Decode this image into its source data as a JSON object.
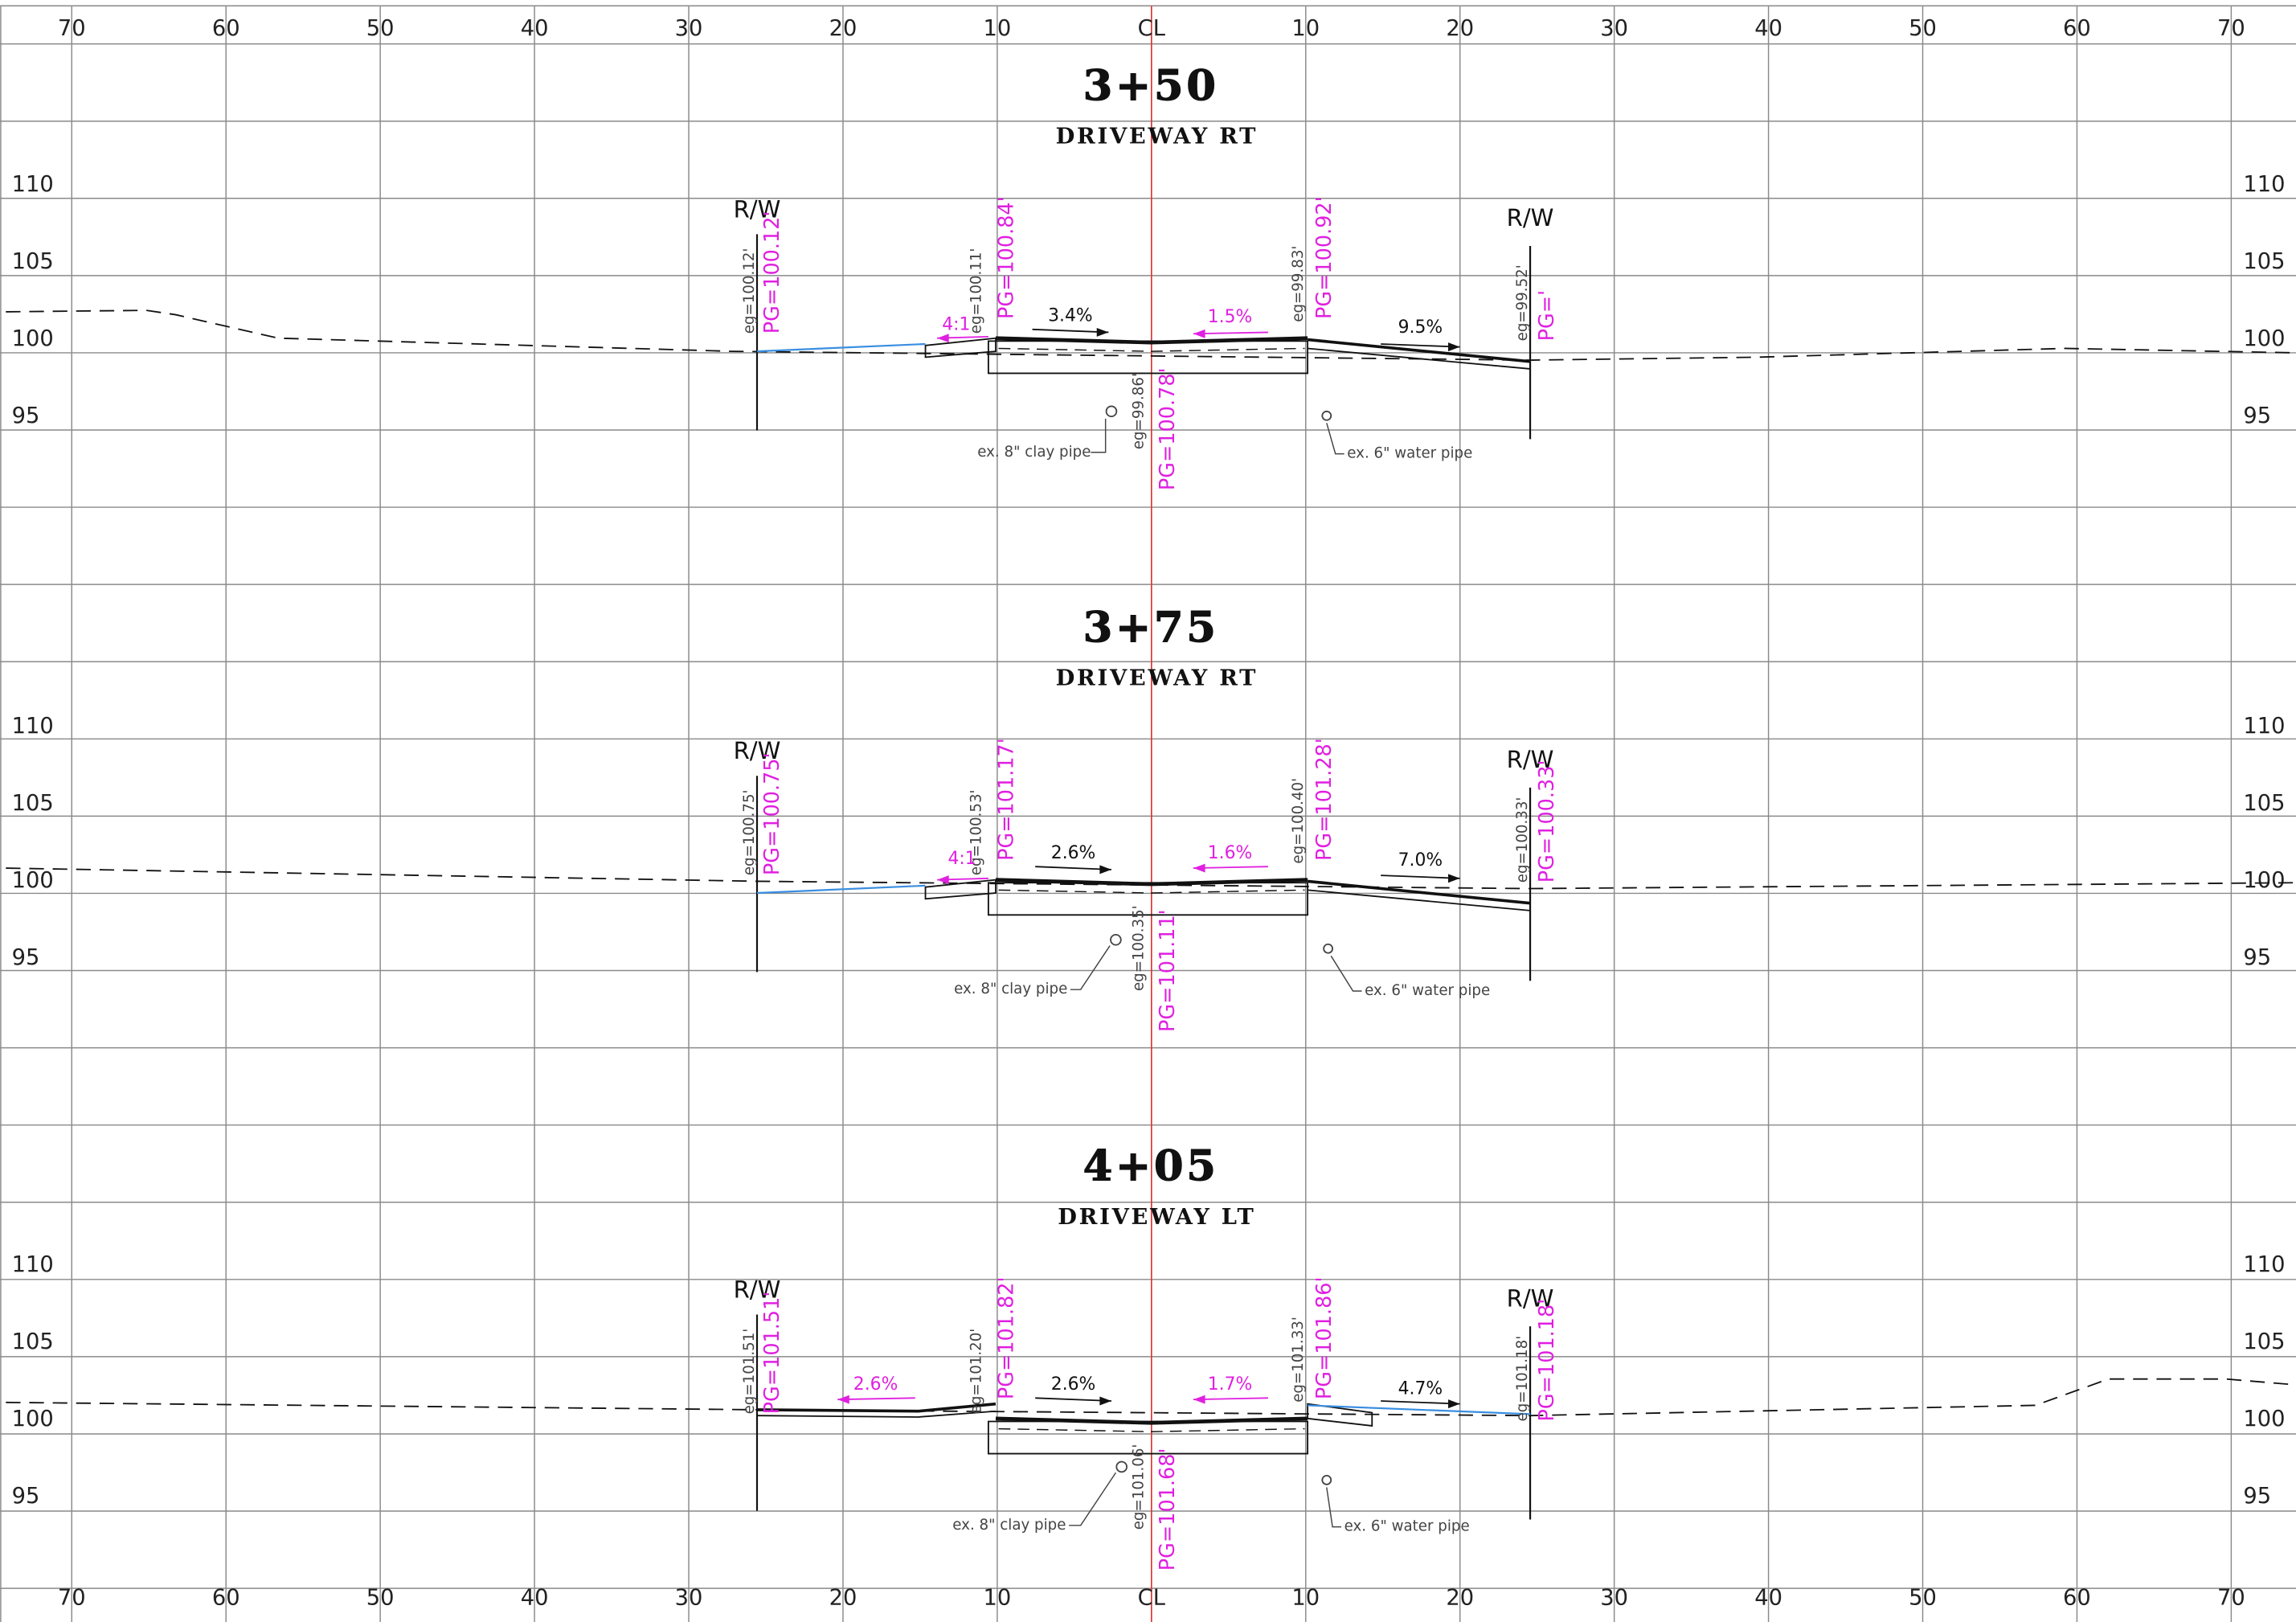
{
  "axis_top": [
    "70",
    "60",
    "50",
    "40",
    "30",
    "20",
    "10",
    "CL",
    "10",
    "20",
    "30",
    "40",
    "50",
    "60",
    "70"
  ],
  "axis_bottom": [
    "70",
    "60",
    "50",
    "40",
    "30",
    "20",
    "10",
    "CL",
    "10",
    "20",
    "30",
    "40",
    "50",
    "60",
    "70"
  ],
  "sections": [
    {
      "station": "3+50",
      "title": "DRIVEWAY RT",
      "elevations_left": [
        110,
        105,
        100,
        95
      ],
      "elevations_right": [
        110,
        105,
        100,
        95
      ],
      "rw_left": "R/W",
      "rw_right": "R/W",
      "eg": [
        "eg=100.12'",
        "eg=100.11'",
        "eg=99.83'",
        "eg=99.52'",
        "eg=99.86'"
      ],
      "pg": [
        "PG=100.12'",
        "PG=100.84'",
        "PG=100.92'",
        "PG='",
        "PG=100.78'"
      ],
      "slopes": [
        {
          "text": "4:1",
          "color": "#e020e0"
        },
        {
          "text": "3.4%",
          "color": "#111111"
        },
        {
          "text": "1.5%",
          "color": "#e020e0"
        },
        {
          "text": "9.5%",
          "color": "#111111"
        }
      ],
      "pipes": [
        "ex. 8\" clay pipe",
        "ex. 6\" water pipe"
      ]
    },
    {
      "station": "3+75",
      "title": "DRIVEWAY RT",
      "elevations_left": [
        110,
        105,
        100,
        95
      ],
      "elevations_right": [
        110,
        105,
        100,
        95
      ],
      "rw_left": "R/W",
      "rw_right": "R/W",
      "eg": [
        "eg=100.75'",
        "eg=100.53'",
        "eg=100.40'",
        "eg=100.33'",
        "eg=100.35'"
      ],
      "pg": [
        "PG=100.75'",
        "PG=101.17'",
        "PG=101.28'",
        "PG=100.33'",
        "PG=101.11'"
      ],
      "slopes": [
        {
          "text": "4:1",
          "color": "#e020e0"
        },
        {
          "text": "2.6%",
          "color": "#111111"
        },
        {
          "text": "1.6%",
          "color": "#e020e0"
        },
        {
          "text": "7.0%",
          "color": "#111111"
        }
      ],
      "pipes": [
        "ex. 8\" clay pipe",
        "ex. 6\" water pipe"
      ]
    },
    {
      "station": "4+05",
      "title": "DRIVEWAY LT",
      "elevations_left": [
        110,
        105,
        100,
        95
      ],
      "elevations_right": [
        110,
        105,
        100,
        95
      ],
      "rw_left": "R/W",
      "rw_right": "R/W",
      "eg": [
        "eg=101.51'",
        "eg=101.20'",
        "eg=101.33'",
        "eg=101.18'",
        "eg=101.06'"
      ],
      "pg": [
        "PG=101.51'",
        "PG=101.82'",
        "PG=101.86'",
        "PG=101.18'",
        "PG=101.68'"
      ],
      "slopes": [
        {
          "text": "2.6%",
          "color": "#e020e0"
        },
        {
          "text": "2.6%",
          "color": "#111111"
        },
        {
          "text": "1.7%",
          "color": "#e020e0"
        },
        {
          "text": "4.7%",
          "color": "#111111"
        }
      ],
      "pipes": [
        "ex. 8\" clay pipe",
        "ex. 6\" water pipe"
      ]
    }
  ]
}
